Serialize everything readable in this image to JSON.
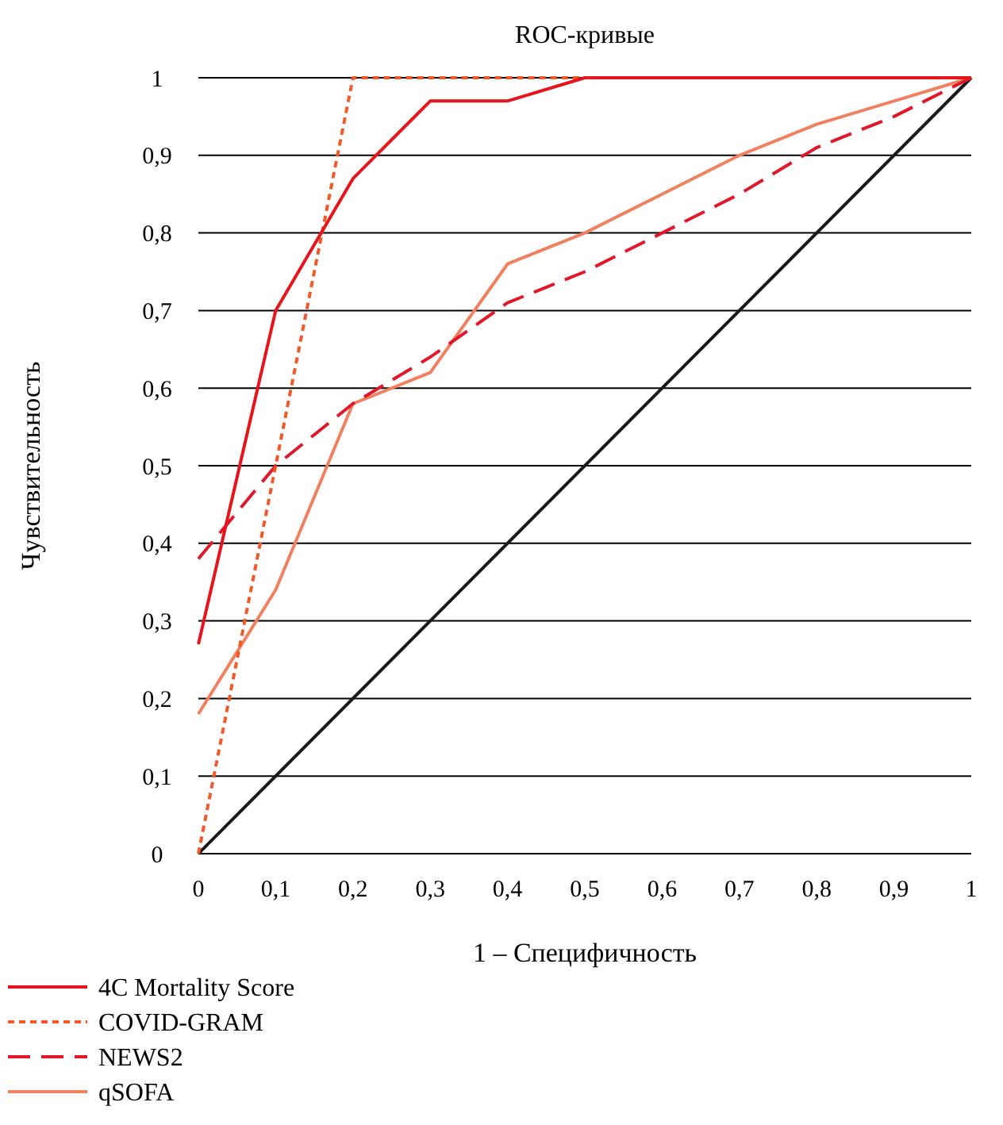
{
  "chart_data": {
    "type": "line",
    "title": "ROC-кривые",
    "xlabel": "1 – Специфичность",
    "ylabel": "Чувствительность",
    "xlim": [
      0,
      1
    ],
    "ylim": [
      0,
      1
    ],
    "xticks": [
      0,
      {
        "value": 0.1,
        "label": "0,1"
      },
      {
        "value": 0.2,
        "label": "0,2"
      },
      {
        "value": 0.3,
        "label": "0,3"
      },
      {
        "value": 0.4,
        "label": "0,4"
      },
      {
        "value": 0.5,
        "label": "0,5"
      },
      {
        "value": 0.6,
        "label": "0,6"
      },
      {
        "value": 0.7,
        "label": "0,7"
      },
      {
        "value": 0.8,
        "label": "0,8"
      },
      {
        "value": 0.9,
        "label": "0,9"
      },
      1
    ],
    "yticks": [
      0,
      {
        "value": 0.1,
        "label": "0,1"
      },
      {
        "value": 0.2,
        "label": "0,2"
      },
      {
        "value": 0.3,
        "label": "0,3"
      },
      {
        "value": 0.4,
        "label": "0,4"
      },
      {
        "value": 0.5,
        "label": "0,5"
      },
      {
        "value": 0.6,
        "label": "0,6"
      },
      {
        "value": 0.7,
        "label": "0,7"
      },
      {
        "value": 0.8,
        "label": "0,8"
      },
      {
        "value": 0.9,
        "label": "0,9"
      },
      1
    ],
    "grid": "y",
    "legend": "bottom",
    "marker": "none",
    "series": [
      {
        "name": "4C Mortality Score",
        "color": "#e8141c",
        "line_style": "solid",
        "x": [
          0,
          0.1,
          0.2,
          0.3,
          0.4,
          0.5,
          1
        ],
        "values": [
          0.27,
          0.7,
          0.87,
          0.97,
          0.97,
          1,
          1
        ]
      },
      {
        "name": "COVID-GRAM",
        "color": "#f05a28",
        "line_style": "dotted",
        "x": [
          0,
          0.2,
          1
        ],
        "values": [
          0,
          1,
          1
        ]
      },
      {
        "name": "NEWS2",
        "color": "#e0182a",
        "line_style": "dashed",
        "x": [
          0,
          0.1,
          0.2,
          0.3,
          0.4,
          0.5,
          0.6,
          0.7,
          0.8,
          0.9,
          1
        ],
        "values": [
          0.38,
          0.5,
          0.58,
          0.64,
          0.71,
          0.75,
          0.8,
          0.85,
          0.91,
          0.95,
          1
        ]
      },
      {
        "name": "qSOFA",
        "color": "#f08060",
        "line_style": "solid",
        "x": [
          0,
          0.1,
          0.2,
          0.3,
          0.4,
          0.5,
          0.6,
          0.7,
          0.8,
          0.9,
          1
        ],
        "values": [
          0.18,
          0.34,
          0.58,
          0.62,
          0.76,
          0.8,
          0.85,
          0.9,
          0.94,
          0.97,
          1
        ]
      },
      {
        "color": "#1a1a1a",
        "line_style": "solid",
        "x": [
          0,
          1
        ],
        "values": [
          0,
          1
        ]
      }
    ]
  }
}
